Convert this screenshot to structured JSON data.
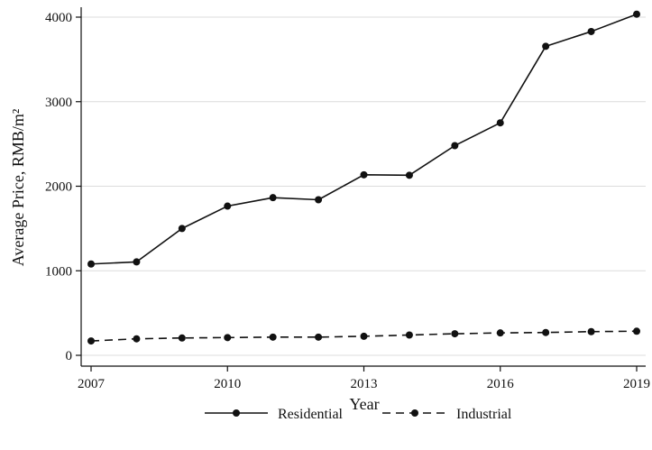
{
  "chart_data": {
    "type": "line",
    "title": "",
    "xlabel": "Year",
    "ylabel": "Average Price, RMB/m²",
    "x": [
      2007,
      2008,
      2009,
      2010,
      2011,
      2012,
      2013,
      2014,
      2015,
      2016,
      2017,
      2018,
      2019
    ],
    "xlim": [
      2007,
      2019
    ],
    "ylim": [
      0,
      4000
    ],
    "xticks": [
      "2007",
      "2010",
      "2013",
      "2016",
      "2019"
    ],
    "yticks": [
      "0",
      "1000",
      "2000",
      "3000",
      "4000"
    ],
    "grid": "horizontal",
    "legend_position": "bottom",
    "series": [
      {
        "name": "Residential",
        "line_style": "solid",
        "color": "#111111",
        "values": [
          1080,
          1105,
          1500,
          1765,
          1865,
          1840,
          2135,
          2130,
          2480,
          2750,
          3655,
          3830,
          4035
        ]
      },
      {
        "name": "Industrial",
        "line_style": "dashed",
        "color": "#111111",
        "values": [
          170,
          195,
          205,
          210,
          215,
          215,
          225,
          240,
          255,
          265,
          270,
          280,
          285
        ]
      }
    ]
  }
}
